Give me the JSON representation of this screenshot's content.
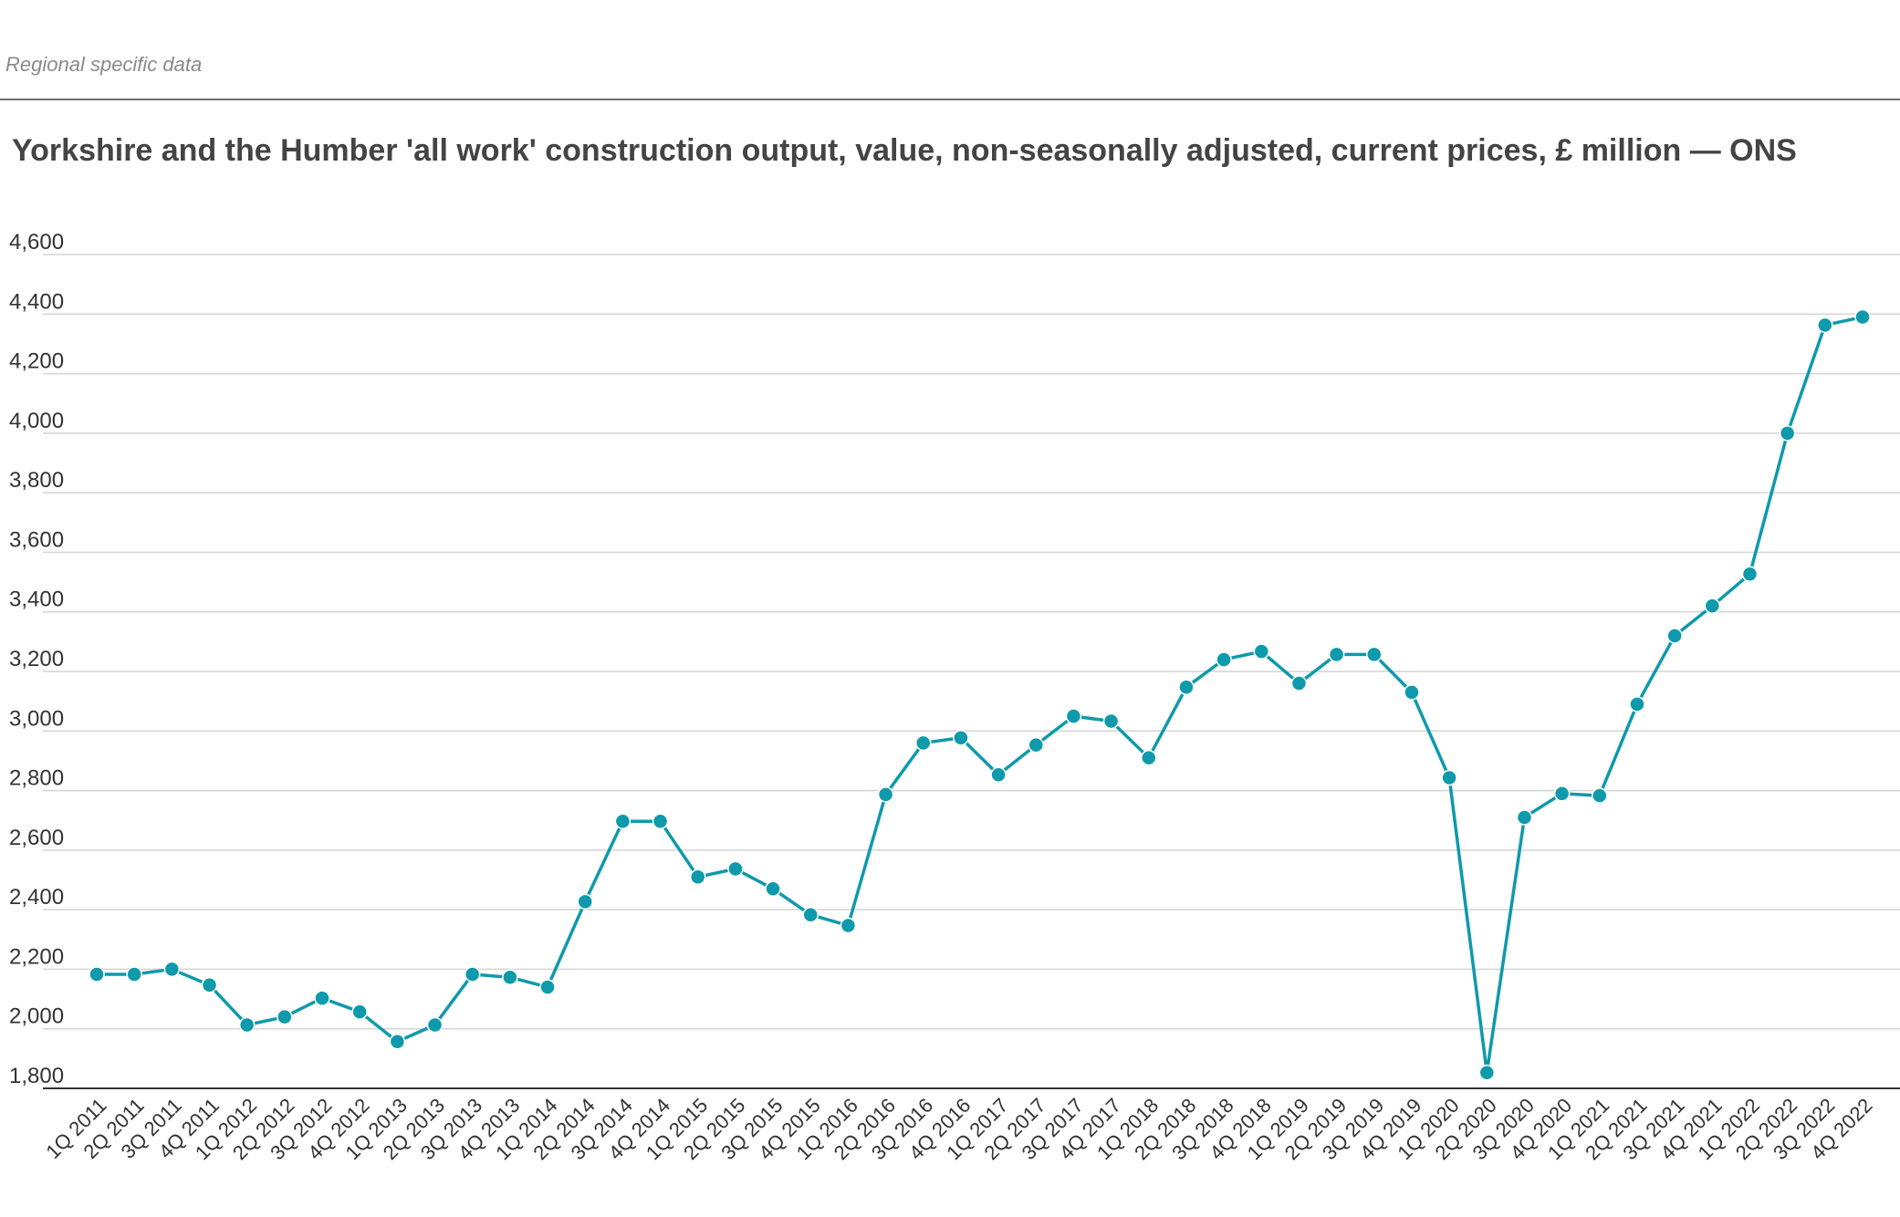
{
  "header": {
    "section_label": "Regional specific data"
  },
  "chart_data": {
    "type": "line",
    "title": "Yorkshire and the Humber 'all work' construction output, value, non-seasonally adjusted, current prices, £ million — ONS",
    "xlabel": "",
    "ylabel": "",
    "ylim": [
      1800,
      4600
    ],
    "yticks": [
      1800,
      2000,
      2200,
      2400,
      2600,
      2800,
      3000,
      3200,
      3400,
      3600,
      3800,
      4000,
      4200,
      4400,
      4600
    ],
    "ytick_labels": [
      "1,800",
      "2,000",
      "2,200",
      "2,400",
      "2,600",
      "2,800",
      "3,000",
      "3,200",
      "3,400",
      "3,600",
      "3,800",
      "4,000",
      "4,200",
      "4,400",
      "4,600"
    ],
    "grid": "horizontal",
    "categories": [
      "1Q 2011",
      "2Q 2011",
      "3Q 2011",
      "4Q 2011",
      "1Q 2012",
      "2Q 2012",
      "3Q 2012",
      "4Q 2012",
      "1Q 2013",
      "2Q 2013",
      "3Q 2013",
      "4Q 2013",
      "1Q 2014",
      "2Q 2014",
      "3Q 2014",
      "4Q 2014",
      "1Q 2015",
      "2Q 2015",
      "3Q 2015",
      "4Q 2015",
      "1Q 2016",
      "2Q 2016",
      "3Q 2016",
      "4Q 2016",
      "1Q 2017",
      "2Q 2017",
      "3Q 2017",
      "4Q 2017",
      "1Q 2018",
      "2Q 2018",
      "3Q 2018",
      "4Q 2018",
      "1Q 2019",
      "2Q 2019",
      "3Q 2019",
      "4Q 2019",
      "1Q 2020",
      "2Q 2020",
      "3Q 2020",
      "4Q 2020",
      "1Q 2021",
      "2Q 2021",
      "3Q 2021",
      "4Q 2021",
      "1Q 2022",
      "2Q 2022",
      "3Q 2022",
      "4Q 2022"
    ],
    "series": [
      {
        "color": "#0e9aab",
        "values": [
          2183,
          2183,
          2200,
          2147,
          2013,
          2040,
          2103,
          2057,
          1957,
          2013,
          2183,
          2173,
          2140,
          2427,
          2697,
          2697,
          2510,
          2537,
          2470,
          2383,
          2347,
          2787,
          2960,
          2977,
          2853,
          2953,
          3050,
          3033,
          2910,
          3147,
          3240,
          3267,
          3160,
          3257,
          3257,
          3130,
          2843,
          1853,
          2710,
          2790,
          2783,
          3090,
          3320,
          3420,
          3527,
          4000,
          4363,
          4390
        ]
      }
    ]
  }
}
